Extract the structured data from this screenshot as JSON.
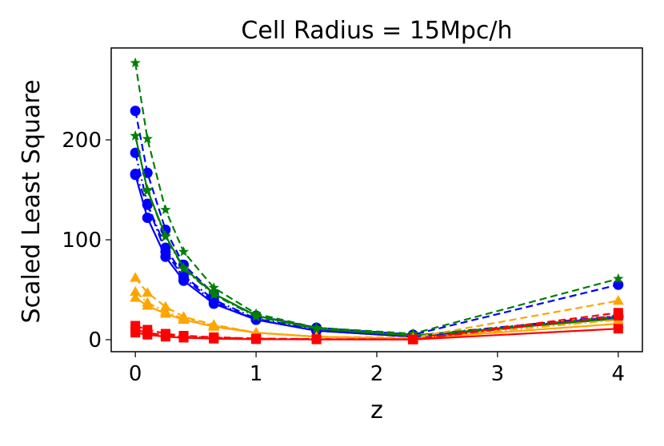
{
  "chart_data": {
    "type": "line",
    "title": "Cell Radius = 15Mpc/h",
    "xlabel": "z",
    "ylabel": "Scaled Least Square",
    "xlim": [
      -0.2,
      4.2
    ],
    "ylim": [
      -12,
      292
    ],
    "xticks": [
      0,
      1,
      2,
      3,
      4
    ],
    "yticks": [
      0,
      100,
      200
    ],
    "grid": false,
    "legend": "none",
    "x": [
      0,
      0.1,
      0.25,
      0.4,
      0.65,
      1.0,
      1.5,
      2.3,
      4.0
    ],
    "series": [
      {
        "color": "#0000ff",
        "marker": "circle",
        "linestyle": "solid",
        "values": [
          165,
          122,
          83,
          59,
          36,
          20,
          9,
          3,
          22
        ]
      },
      {
        "color": "#0000ff",
        "marker": "circle",
        "linestyle": "dashed",
        "values": [
          229,
          167,
          110,
          75,
          46,
          24,
          12,
          5,
          55
        ]
      },
      {
        "color": "#0000ff",
        "marker": "circle",
        "linestyle": "dashdot",
        "values": [
          187,
          136,
          92,
          64,
          40,
          21,
          10,
          4,
          24
        ]
      },
      {
        "color": "#0000ff",
        "marker": "circle",
        "linestyle": "dashdot",
        "values": [
          166,
          135,
          88,
          62,
          38,
          20,
          9,
          3,
          23
        ]
      },
      {
        "color": "#008000",
        "marker": "star",
        "linestyle": "solid",
        "values": [
          204,
          150,
          104,
          72,
          46,
          24,
          11,
          4,
          21
        ]
      },
      {
        "color": "#008000",
        "marker": "star",
        "linestyle": "dashed",
        "values": [
          277,
          201,
          130,
          88,
          52,
          26,
          12,
          6,
          61
        ]
      },
      {
        "color": "#008000",
        "marker": "star",
        "linestyle": "dashdot",
        "values": [
          204,
          149,
          103,
          71,
          45,
          23,
          11,
          4,
          23
        ]
      },
      {
        "color": "#ffa500",
        "marker": "triangle",
        "linestyle": "solid",
        "values": [
          42,
          34,
          26,
          20,
          13,
          7,
          3,
          1,
          16
        ]
      },
      {
        "color": "#ffa500",
        "marker": "triangle",
        "linestyle": "dashed",
        "values": [
          62,
          47,
          33,
          23,
          15,
          7,
          3,
          2,
          39
        ]
      },
      {
        "color": "#ffa500",
        "marker": "triangle",
        "linestyle": "dashdot",
        "values": [
          48,
          37,
          28,
          21,
          14,
          7,
          3,
          1,
          20
        ]
      },
      {
        "color": "#ff0000",
        "marker": "square",
        "linestyle": "solid",
        "values": [
          7,
          5,
          3,
          2,
          1,
          0.5,
          0.3,
          0.2,
          11
        ]
      },
      {
        "color": "#ff0000",
        "marker": "square",
        "linestyle": "dashed",
        "values": [
          14,
          10,
          6,
          4,
          2.5,
          1.2,
          0.6,
          0.4,
          27
        ]
      },
      {
        "color": "#ff0000",
        "marker": "square",
        "linestyle": "dashdot",
        "values": [
          10,
          7,
          4.5,
          3,
          2,
          1,
          0.5,
          0.3,
          24
        ]
      }
    ]
  }
}
